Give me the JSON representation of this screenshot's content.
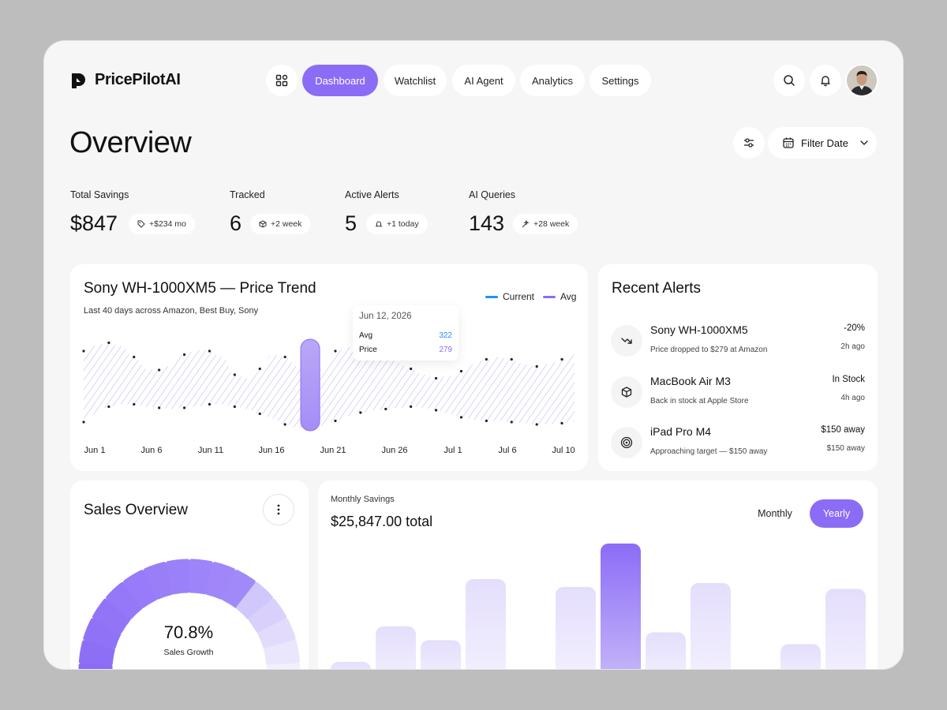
{
  "app": {
    "name": "PricePilotAI"
  },
  "nav": {
    "items": [
      {
        "label": "Dashboard",
        "active": true
      },
      {
        "label": "Watchlist",
        "active": false
      },
      {
        "label": "AI Agent",
        "active": false
      },
      {
        "label": "Analytics",
        "active": false
      },
      {
        "label": "Settings",
        "active": false
      }
    ],
    "icons": [
      "grid-icon",
      "search-icon",
      "bell-icon",
      "avatar"
    ]
  },
  "page": {
    "title": "Overview",
    "filter_label": "Filter Date"
  },
  "stats": [
    {
      "label": "Total Savings",
      "value": "$847",
      "badge": "+$234 mo",
      "icon": "tag-icon"
    },
    {
      "label": "Tracked",
      "value": "6",
      "badge": "+2 week",
      "icon": "box-icon"
    },
    {
      "label": "Active Alerts",
      "value": "5",
      "badge": "+1 today",
      "icon": "bell-icon"
    },
    {
      "label": "AI Queries",
      "value": "143",
      "badge": "+28 week",
      "icon": "sparkle-icon"
    }
  ],
  "trend": {
    "title": "Sony WH-1000XM5 — Price Trend",
    "subtitle": "Last 40 days across Amazon, Best Buy, Sony",
    "legend": {
      "current": "Current",
      "avg": "Avg"
    },
    "tooltip": {
      "date": "Jun 12, 2026",
      "avg_label": "Avg",
      "avg_value": "322",
      "price_label": "Price",
      "price_value": "279"
    }
  },
  "alerts": {
    "title": "Recent Alerts",
    "items": [
      {
        "name": "Sony WH-1000XM5",
        "desc": "Price dropped to $279 at Amazon",
        "value": "-20%",
        "time": "2h ago",
        "icon": "trend-down-icon"
      },
      {
        "name": "MacBook Air M3",
        "desc": "Back in stock at Apple Store",
        "value": "In Stock",
        "time": "4h ago",
        "icon": "box-icon"
      },
      {
        "name": "iPad Pro M4",
        "desc": "Approaching target — $150 away",
        "value": "$150 away",
        "time": "$150 away",
        "icon": "target-icon"
      }
    ]
  },
  "sales": {
    "title": "Sales Overview",
    "percent": "70.8%",
    "label": "Sales Growth",
    "fraction": 0.708
  },
  "savings": {
    "label": "Monthly Savings",
    "total": "$25,847.00 total",
    "toggle_monthly": "Monthly",
    "toggle_yearly": "Yearly"
  },
  "chart_data": [
    {
      "type": "area",
      "title": "Sony WH-1000XM5 — Price Trend",
      "categories": [
        "Jun 1",
        "Jun 6",
        "Jun 11",
        "Jun 16",
        "Jun 21",
        "Jun 26",
        "Jul 1",
        "Jul 6",
        "Jul 10"
      ],
      "series": [
        {
          "name": "Current",
          "upper": [
            345,
            350,
            352,
            349,
            340,
            330,
            329,
            333,
            342,
            346,
            345,
            340,
            325,
            322,
            330,
            342,
            340,
            332,
            322,
            330,
            345,
            348,
            350,
            348,
            342,
            335,
            330,
            325,
            322,
            324,
            328,
            334,
            338,
            340,
            338,
            334,
            332,
            334,
            338,
            342
          ]
        },
        {
          "name": "Avg",
          "lower": [
            285,
            292,
            298,
            300,
            300,
            298,
            297,
            296,
            297,
            298,
            300,
            300,
            298,
            296,
            292,
            288,
            283,
            280,
            279,
            282,
            286,
            290,
            293,
            295,
            296,
            297,
            298,
            297,
            295,
            292,
            289,
            287,
            286,
            286,
            285,
            284,
            283,
            283,
            284,
            285
          ]
        }
      ],
      "highlight": {
        "date": "Jun 12, 2026",
        "avg": 322,
        "price": 279
      }
    },
    {
      "type": "bar",
      "title": "Monthly Savings",
      "values": [
        8,
        26,
        19,
        50,
        0,
        46,
        68,
        23,
        48,
        0,
        17,
        45
      ],
      "highlight_index": 6,
      "ylim": [
        0,
        80
      ]
    }
  ],
  "colors": {
    "accent": "#8b6cf6",
    "accent_light": "#c9baf9",
    "blue": "#1e90ff"
  }
}
